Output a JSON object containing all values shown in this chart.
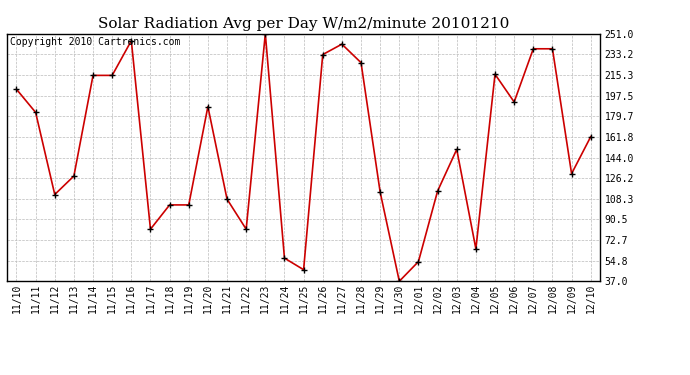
{
  "title": "Solar Radiation Avg per Day W/m2/minute 20101210",
  "copyright": "Copyright 2010 Cartronics.com",
  "x_labels": [
    "11/10",
    "11/11",
    "11/12",
    "11/13",
    "11/14",
    "11/15",
    "11/16",
    "11/17",
    "11/18",
    "11/19",
    "11/20",
    "11/21",
    "11/22",
    "11/23",
    "11/24",
    "11/25",
    "11/26",
    "11/27",
    "11/28",
    "11/29",
    "11/30",
    "12/01",
    "12/02",
    "12/03",
    "12/04",
    "12/05",
    "12/06",
    "12/07",
    "12/08",
    "12/09",
    "12/10"
  ],
  "y_values": [
    203,
    183,
    112,
    128,
    215,
    215,
    245,
    82,
    103,
    103,
    188,
    108,
    82,
    251,
    57,
    47,
    233,
    242,
    226,
    114,
    37,
    54,
    115,
    151,
    65,
    216,
    192,
    238,
    238,
    130,
    162
  ],
  "y_ticks": [
    37.0,
    54.8,
    72.7,
    90.5,
    108.3,
    126.2,
    144.0,
    161.8,
    179.7,
    197.5,
    215.3,
    233.2,
    251.0
  ],
  "line_color": "#cc0000",
  "marker_color": "#000000",
  "bg_color": "#ffffff",
  "grid_color": "#bbbbbb",
  "ylim": [
    37.0,
    251.0
  ],
  "title_fontsize": 11,
  "label_fontsize": 7,
  "copyright_fontsize": 7
}
